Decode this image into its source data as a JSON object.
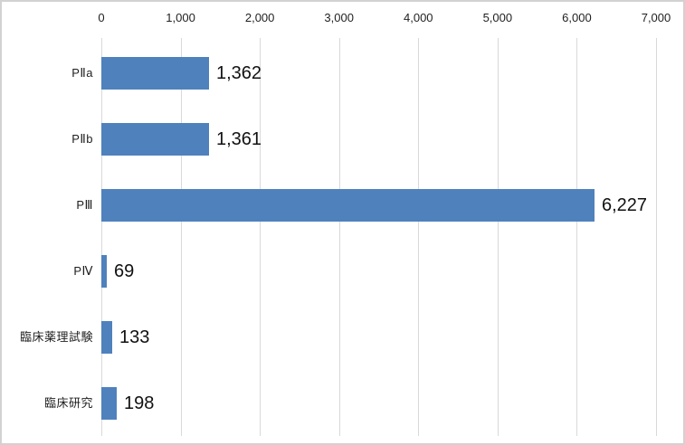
{
  "chart": {
    "colors": {
      "background": "#ffffff",
      "frame_border": "#d2d2d2",
      "bar": "#4f81bd",
      "gridline": "#d9d9d9",
      "axis_text": "#1f1f1f",
      "data_label_text": "#111111"
    }
  },
  "chart_data": {
    "type": "bar",
    "orientation": "horizontal",
    "title": "",
    "xlabel": "",
    "ylabel": "",
    "categories": [
      "PⅡa",
      "PⅡb",
      "PⅢ",
      "PⅣ",
      "臨床薬理試験",
      "臨床研究"
    ],
    "values": [
      1362,
      1361,
      6227,
      69,
      133,
      198
    ],
    "data_labels": [
      "1,362",
      "1,361",
      "6,227",
      "69",
      "133",
      "198"
    ],
    "xlim": [
      0,
      7000
    ],
    "x_ticks": [
      0,
      1000,
      2000,
      3000,
      4000,
      5000,
      6000,
      7000
    ],
    "x_tick_labels": [
      "0",
      "1,000",
      "2,000",
      "3,000",
      "4,000",
      "5,000",
      "6,000",
      "7,000"
    ],
    "value_axis_position": "top",
    "grid": "vertical-only",
    "legend": "none"
  }
}
